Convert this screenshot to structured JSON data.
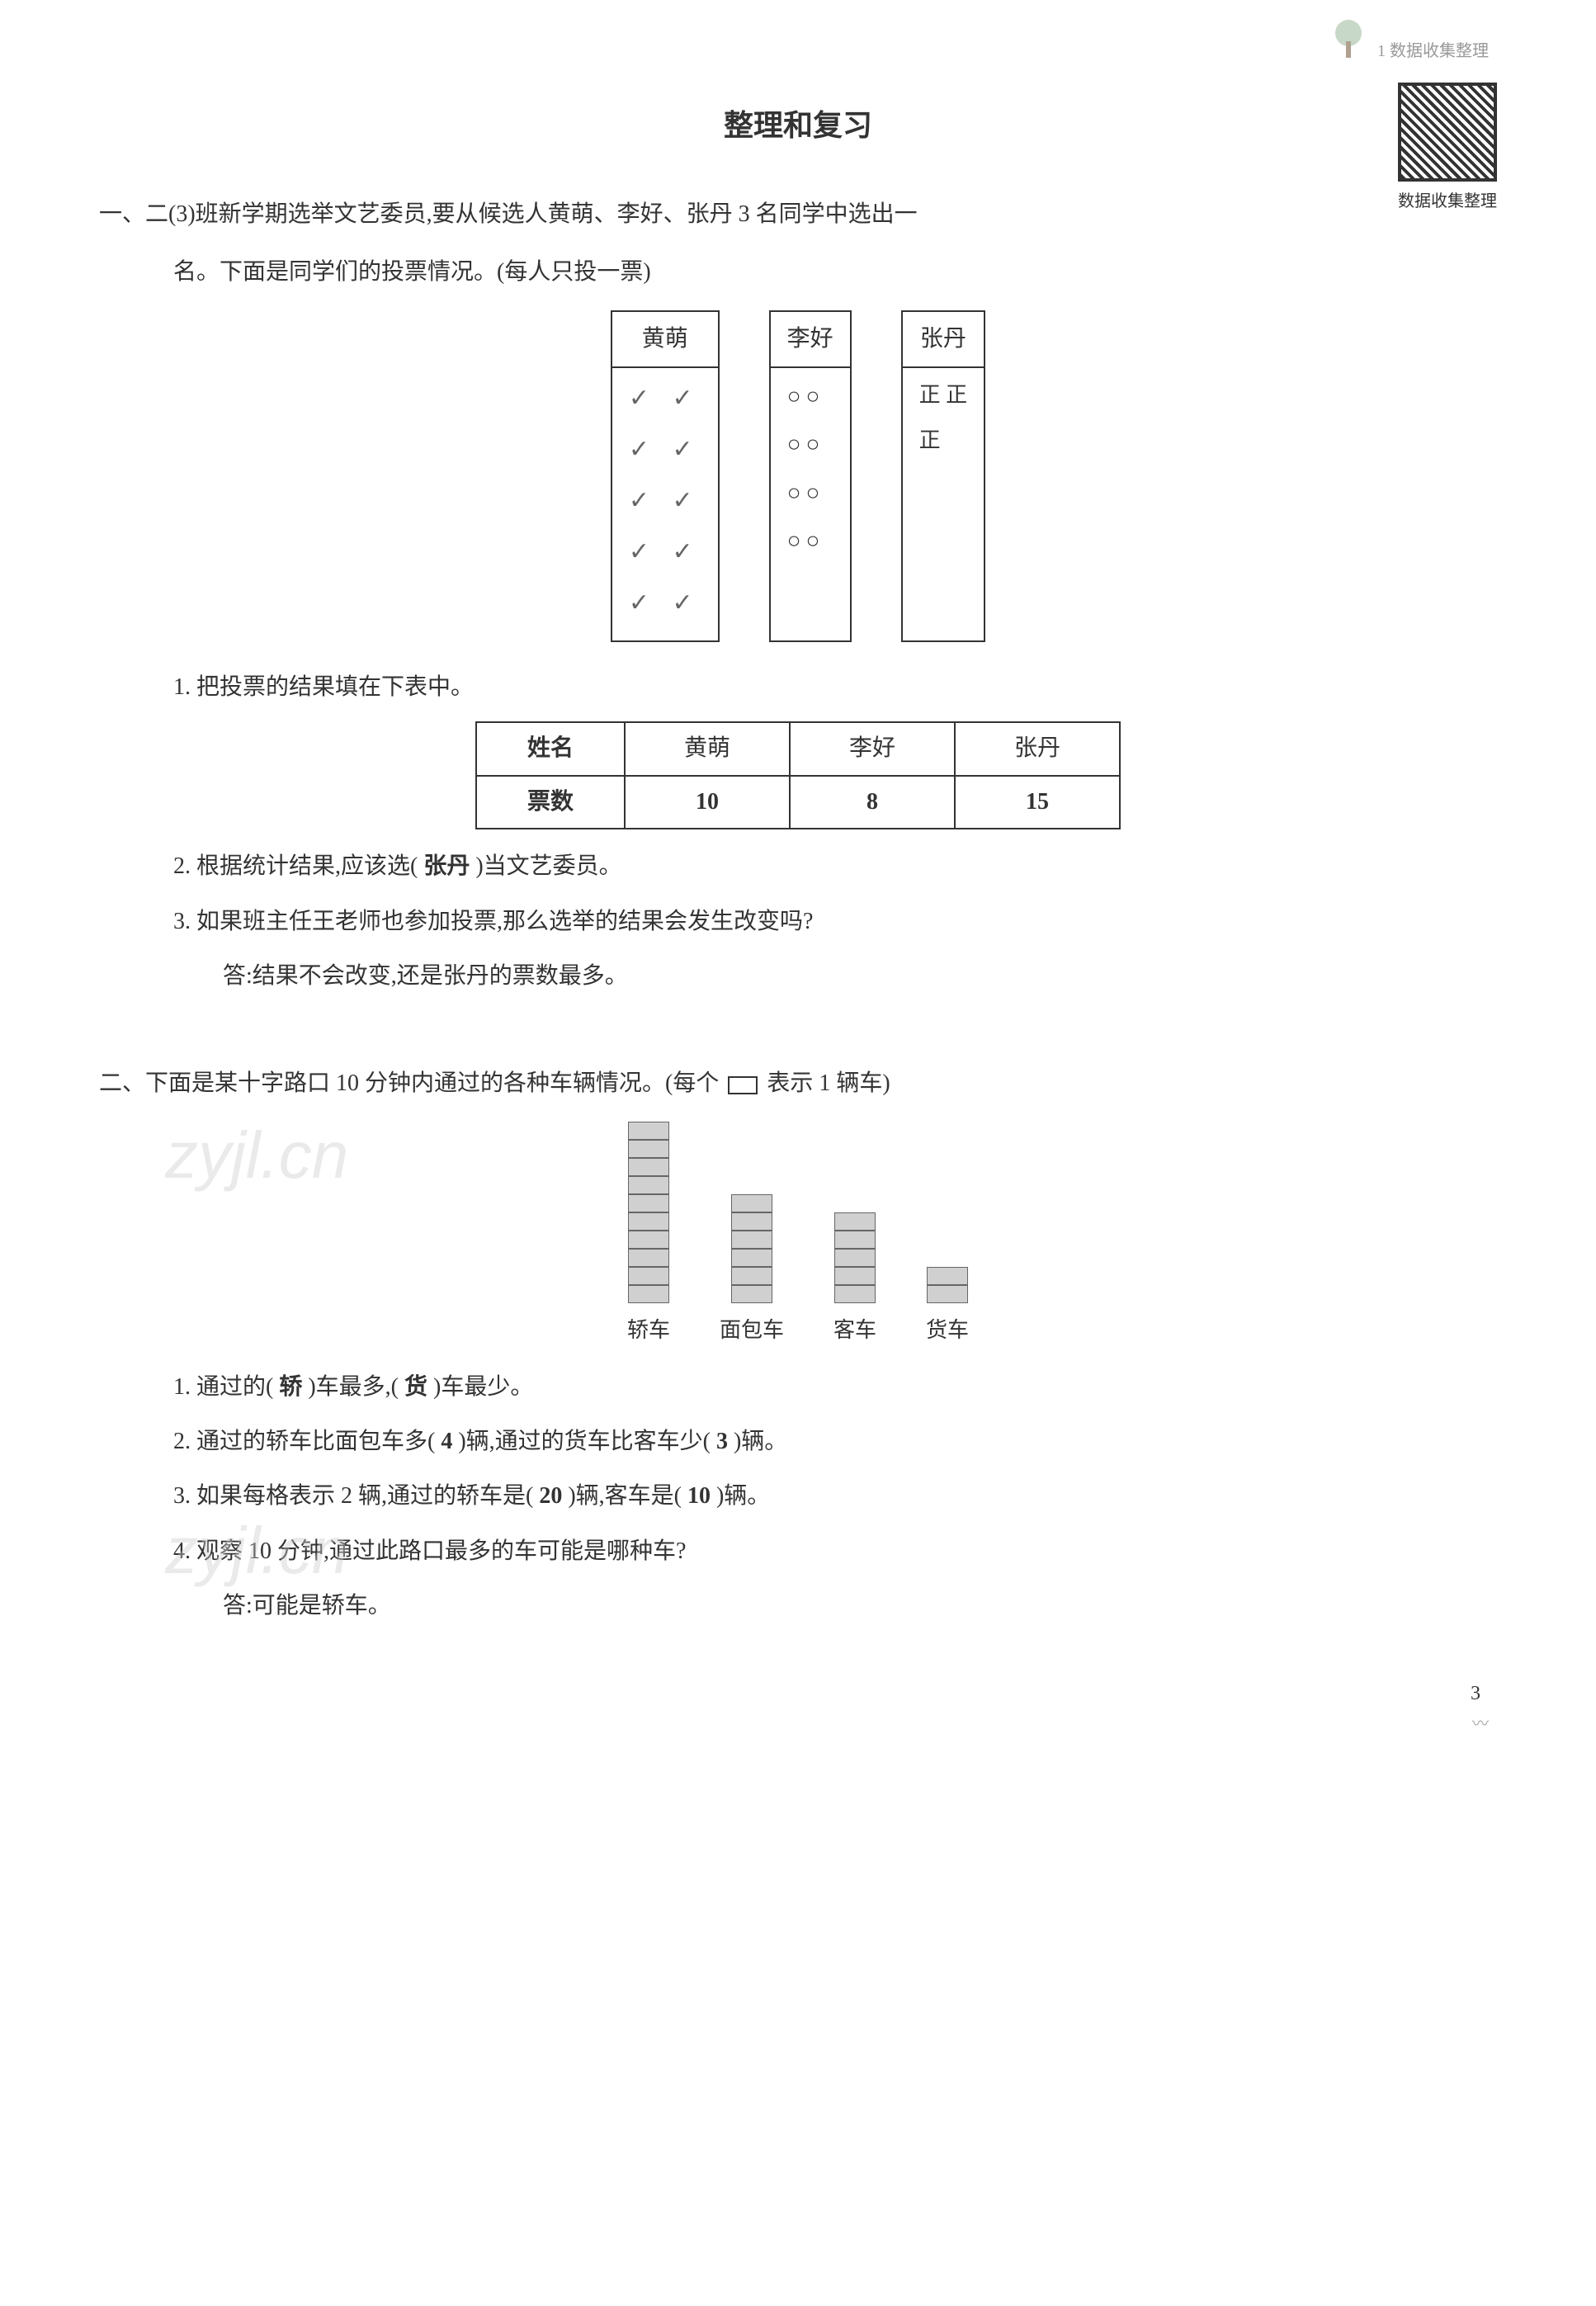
{
  "header": {
    "chapter_label": "1 数据收集整理",
    "qr_label": "数据收集整理"
  },
  "title": "整理和复习",
  "section1": {
    "intro_line1": "一、二(3)班新学期选举文艺委员,要从候选人黄萌、李好、张丹 3 名同学中选出一",
    "intro_line2": "名。下面是同学们的投票情况。(每人只投一票)",
    "vote_boxes": [
      {
        "name": "黄萌",
        "rows": [
          "✓ ✓",
          "✓ ✓",
          "✓ ✓",
          "✓ ✓",
          "✓ ✓"
        ],
        "class": "check"
      },
      {
        "name": "李好",
        "rows": [
          "○○",
          "○○",
          "○○",
          "○○"
        ],
        "class": "circle-pair"
      },
      {
        "name": "张丹",
        "rows": [
          "正 正",
          "正"
        ],
        "class": ""
      }
    ],
    "q1": {
      "label": "1. 把投票的结果填在下表中。",
      "table": {
        "header_label": "姓名",
        "row_label": "票数",
        "cols": [
          "黄萌",
          "李好",
          "张丹"
        ],
        "values": [
          "10",
          "8",
          "15"
        ]
      }
    },
    "q2": {
      "prefix": "2. 根据统计结果,应该选(",
      "answer": " 张丹 ",
      "suffix": ")当文艺委员。"
    },
    "q3": {
      "text": "3. 如果班主任王老师也参加投票,那么选举的结果会发生改变吗?",
      "answer": "答:结果不会改变,还是张丹的票数最多。"
    }
  },
  "section2": {
    "intro_prefix": "二、下面是某十字路口 10 分钟内通过的各种车辆情况。(每个 ",
    "intro_suffix": " 表示 1 辆车)",
    "bars": [
      {
        "label": "轿车",
        "count": 10
      },
      {
        "label": "面包车",
        "count": 6
      },
      {
        "label": "客车",
        "count": 5
      },
      {
        "label": "货车",
        "count": 2
      }
    ],
    "q1": {
      "p1": "1. 通过的(",
      "a1": " 轿 ",
      "p2": ")车最多,(",
      "a2": " 货 ",
      "p3": ")车最少。"
    },
    "q2": {
      "p1": "2. 通过的轿车比面包车多(",
      "a1": " 4 ",
      "p2": ")辆,通过的货车比客车少(",
      "a2": " 3 ",
      "p3": ")辆。"
    },
    "q3": {
      "p1": "3. 如果每格表示 2 辆,通过的轿车是(",
      "a1": " 20 ",
      "p2": ")辆,客车是(",
      "a2": " 10 ",
      "p3": ")辆。"
    },
    "q4": {
      "text": "4. 观察 10 分钟,通过此路口最多的车可能是哪种车?",
      "answer": "答:可能是轿车。"
    }
  },
  "watermark": "zyjl.cn",
  "page_number": "3",
  "page_deco": "〰"
}
